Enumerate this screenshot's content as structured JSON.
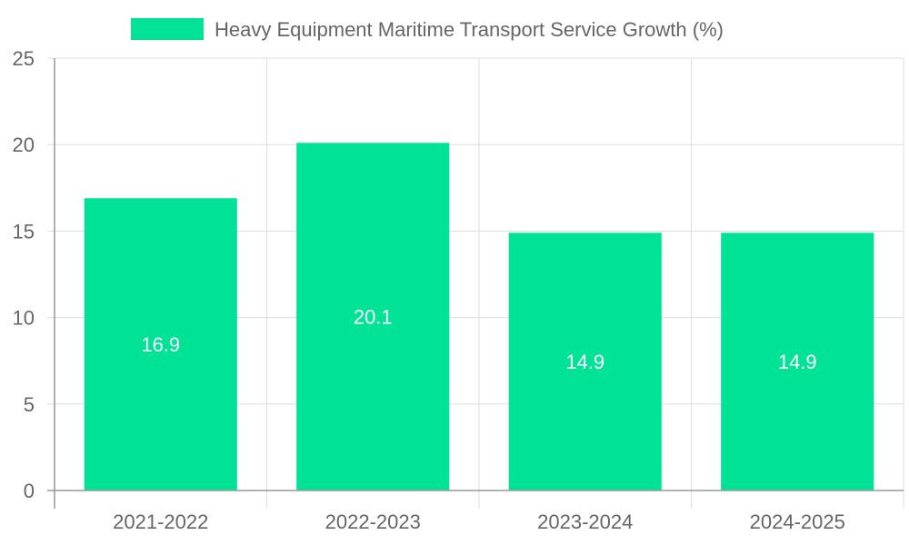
{
  "colors": {
    "bar": "#00e396",
    "text": "#666666",
    "grid": "#dddddd",
    "label": "#ffffff"
  },
  "chart_data": {
    "type": "bar",
    "title": "",
    "legend": {
      "label": "Heavy Equipment Maritime Transport Service Growth (%)",
      "position": "top-center"
    },
    "categories": [
      "2021-2022",
      "2022-2023",
      "2023-2024",
      "2024-2025"
    ],
    "series": [
      {
        "name": "Heavy Equipment Maritime Transport Service Growth (%)",
        "values": [
          16.9,
          20.1,
          14.9,
          14.9
        ]
      }
    ],
    "data_labels": [
      "16.9",
      "20.1",
      "14.9",
      "14.9"
    ],
    "xlabel": "",
    "ylabel": "",
    "ylim": [
      0,
      25
    ],
    "yticks": [
      0,
      5,
      10,
      15,
      20,
      25
    ],
    "grid": true
  }
}
